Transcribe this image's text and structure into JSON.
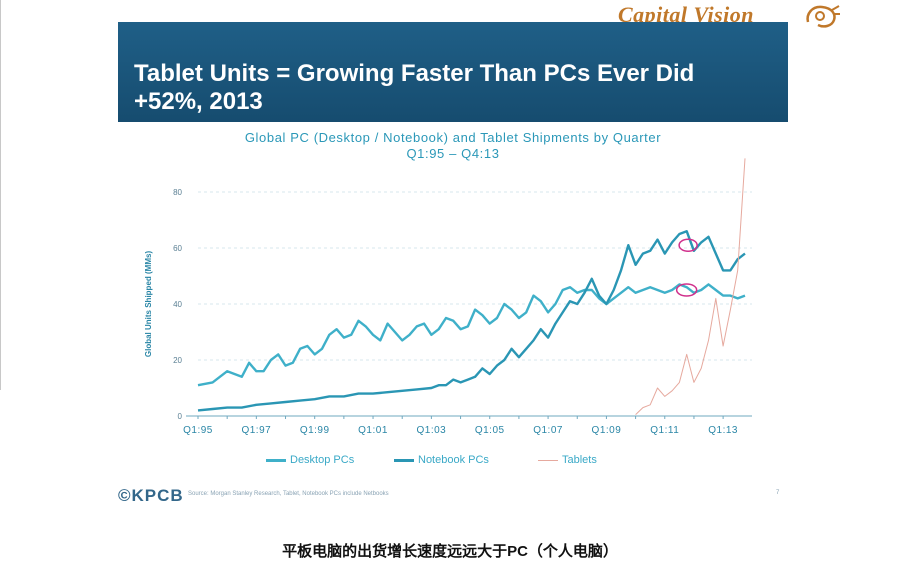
{
  "logo": {
    "text": "Capital Vision",
    "mark": "lion-emblem-icon",
    "color": "#c0782a"
  },
  "slide": {
    "title_line1": "Tablet Units = Growing Faster Than PCs Ever Did",
    "title_line2": "+52%, 2013",
    "banner_color": "#1b5a80"
  },
  "footer": {
    "brand": "©KPCB",
    "note": "Source: Morgan Stanley Research, Tablet, Notebook PCs include Netbooks",
    "page": "7"
  },
  "caption": "平板电脑的出货增长速度远远大于PC（个人电脑）",
  "chart_data": {
    "type": "line",
    "title": "Global PC (Desktop / Notebook) and Tablet Shipments by Quarter",
    "subtitle": "Q1:95 – Q4:13",
    "ylabel": "Global Units Shipped (MMs)",
    "xlabel": "",
    "ylim": [
      0,
      80
    ],
    "yticks": [
      0,
      20,
      40,
      60,
      80
    ],
    "xlim": [
      1995.0,
      2013.99
    ],
    "xticks": [
      {
        "label": "Q1:95",
        "x": 1995.0
      },
      {
        "label": "Q1:97",
        "x": 1997.0
      },
      {
        "label": "Q1:99",
        "x": 1999.0
      },
      {
        "label": "Q1:01",
        "x": 2001.0
      },
      {
        "label": "Q1:03",
        "x": 2003.0
      },
      {
        "label": "Q1:05",
        "x": 2005.0
      },
      {
        "label": "Q1:07",
        "x": 2007.0
      },
      {
        "label": "Q1:09",
        "x": 2009.0
      },
      {
        "label": "Q1:11",
        "x": 2011.0
      },
      {
        "label": "Q1:13",
        "x": 2013.0
      }
    ],
    "grid": true,
    "legend_position": "bottom",
    "series": [
      {
        "name": "Desktop PCs",
        "color": "#3fb0c9",
        "x": [
          1995.0,
          1995.5,
          1996.0,
          1996.5,
          1996.75,
          1997.0,
          1997.25,
          1997.5,
          1997.75,
          1998.0,
          1998.25,
          1998.5,
          1998.75,
          1999.0,
          1999.25,
          1999.5,
          1999.75,
          2000.0,
          2000.25,
          2000.5,
          2000.75,
          2001.0,
          2001.25,
          2001.5,
          2001.75,
          2002.0,
          2002.25,
          2002.5,
          2002.75,
          2003.0,
          2003.25,
          2003.5,
          2003.75,
          2004.0,
          2004.25,
          2004.5,
          2004.75,
          2005.0,
          2005.25,
          2005.5,
          2005.75,
          2006.0,
          2006.25,
          2006.5,
          2006.75,
          2007.0,
          2007.25,
          2007.5,
          2007.75,
          2008.0,
          2008.25,
          2008.5,
          2008.75,
          2009.0,
          2009.25,
          2009.5,
          2009.75,
          2010.0,
          2010.25,
          2010.5,
          2010.75,
          2011.0,
          2011.25,
          2011.5,
          2011.75,
          2012.0,
          2012.25,
          2012.5,
          2012.75,
          2013.0,
          2013.25,
          2013.5,
          2013.75
        ],
        "values": [
          11,
          12,
          16,
          14,
          19,
          16,
          16,
          20,
          22,
          18,
          19,
          24,
          25,
          22,
          24,
          29,
          31,
          28,
          29,
          34,
          32,
          29,
          27,
          33,
          30,
          27,
          29,
          32,
          33,
          29,
          31,
          35,
          34,
          31,
          32,
          38,
          36,
          33,
          35,
          40,
          38,
          35,
          37,
          43,
          41,
          37,
          40,
          45,
          46,
          44,
          45,
          45,
          42,
          40,
          42,
          44,
          46,
          44,
          45,
          46,
          45,
          44,
          45,
          47,
          46,
          44,
          45,
          47,
          45,
          43,
          43,
          42,
          43
        ]
      },
      {
        "name": "Notebook PCs",
        "color": "#2a96b4",
        "x": [
          1995.0,
          1995.5,
          1996.0,
          1996.5,
          1997.0,
          1997.5,
          1998.0,
          1998.5,
          1999.0,
          1999.5,
          2000.0,
          2000.5,
          2001.0,
          2001.5,
          2002.0,
          2002.5,
          2003.0,
          2003.25,
          2003.5,
          2003.75,
          2004.0,
          2004.25,
          2004.5,
          2004.75,
          2005.0,
          2005.25,
          2005.5,
          2005.75,
          2006.0,
          2006.25,
          2006.5,
          2006.75,
          2007.0,
          2007.25,
          2007.5,
          2007.75,
          2008.0,
          2008.25,
          2008.5,
          2008.75,
          2009.0,
          2009.25,
          2009.5,
          2009.75,
          2010.0,
          2010.25,
          2010.5,
          2010.75,
          2011.0,
          2011.25,
          2011.5,
          2011.75,
          2012.0,
          2012.25,
          2012.5,
          2012.75,
          2013.0,
          2013.25,
          2013.5,
          2013.75
        ],
        "values": [
          2,
          2.5,
          3,
          3,
          4,
          4.5,
          5,
          5.5,
          6,
          7,
          7,
          8,
          8,
          8.5,
          9,
          9.5,
          10,
          11,
          11,
          13,
          12,
          13,
          14,
          17,
          15,
          18,
          20,
          24,
          21,
          24,
          27,
          31,
          28,
          33,
          37,
          41,
          40,
          44,
          49,
          43,
          40,
          45,
          52,
          61,
          54,
          58,
          59,
          63,
          58,
          62,
          65,
          66,
          59,
          62,
          64,
          58,
          52,
          52,
          56,
          58
        ]
      },
      {
        "name": "Tablets",
        "color": "#e6a99e",
        "x": [
          2010.0,
          2010.25,
          2010.5,
          2010.75,
          2011.0,
          2011.25,
          2011.5,
          2011.75,
          2012.0,
          2012.25,
          2012.5,
          2012.75,
          2013.0,
          2013.25,
          2013.5,
          2013.75
        ],
        "values": [
          0.5,
          3,
          4,
          10,
          7,
          9,
          12,
          22,
          12,
          17,
          27,
          42,
          25,
          38,
          52,
          92
        ]
      }
    ]
  }
}
